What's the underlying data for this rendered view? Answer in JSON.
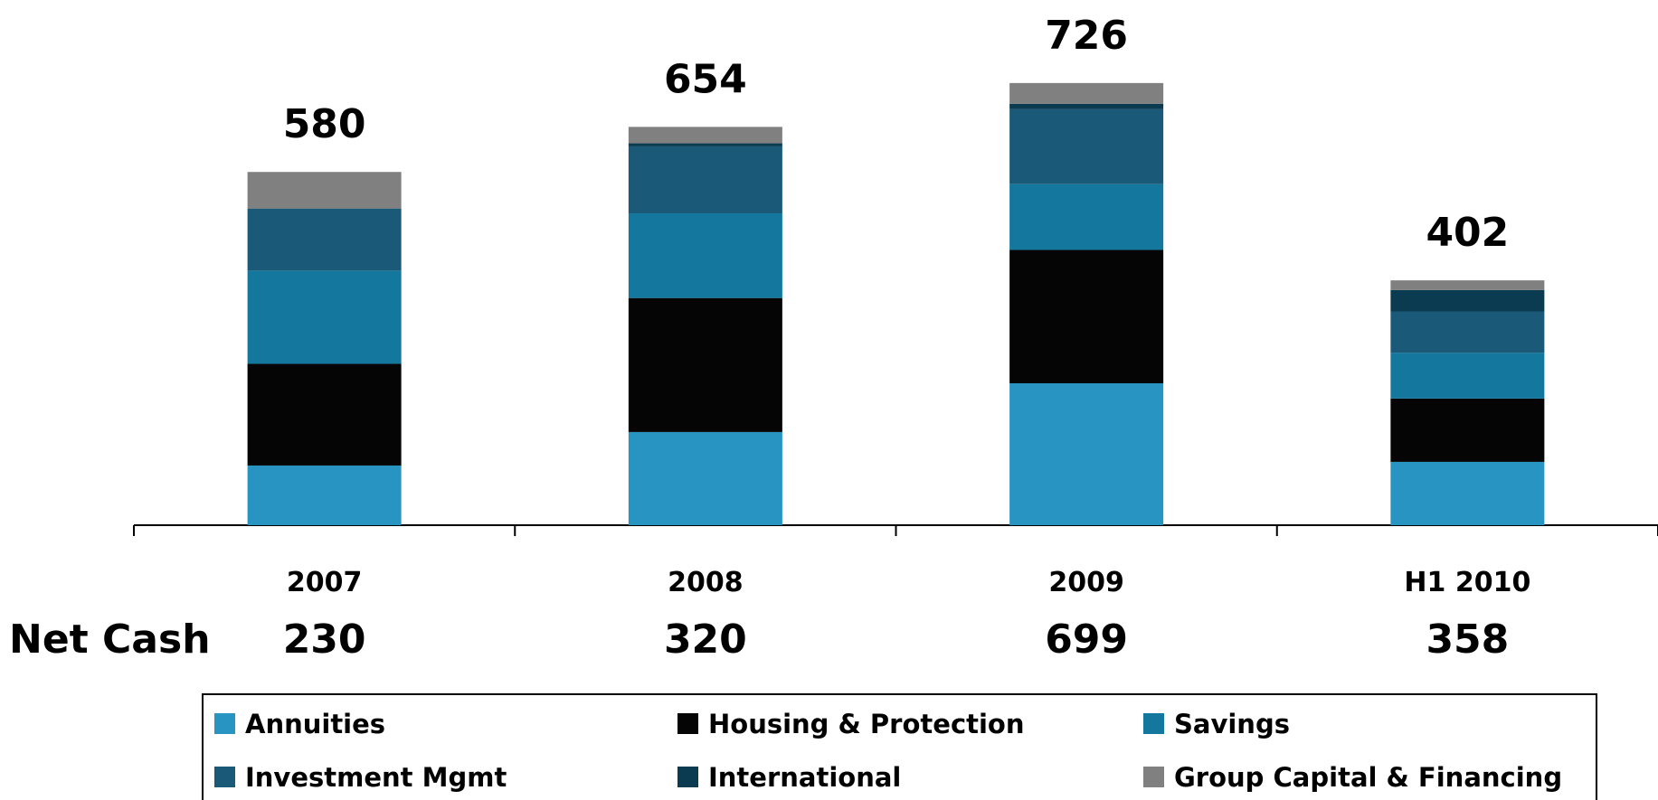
{
  "chart_data": {
    "type": "stacked_bar",
    "categories": [
      "2007",
      "2008",
      "2009",
      "H1 2010"
    ],
    "series": [
      {
        "name": "Annuities",
        "color": "#2894c2",
        "values": [
          98,
          153,
          233,
          104
        ]
      },
      {
        "name": "Housing & Protection",
        "color": "#050505",
        "values": [
          167,
          220,
          219,
          104
        ]
      },
      {
        "name": "Savings",
        "color": "#13779e",
        "values": [
          153,
          139,
          108,
          75
        ]
      },
      {
        "name": "Investment Mgmt",
        "color": "#1a5a78",
        "values": [
          102,
          110,
          123,
          68
        ]
      },
      {
        "name": "International",
        "color": "#0b3b50",
        "values": [
          0,
          5,
          9,
          35
        ]
      },
      {
        "name": "Group Capital & Financing",
        "color": "#808080",
        "values": [
          60,
          27,
          34,
          16
        ]
      }
    ],
    "totals": [
      580,
      654,
      726,
      402
    ],
    "net_cash": {
      "label": "Net Cash",
      "values": [
        230,
        320,
        699,
        358
      ]
    },
    "ylim": [
      0,
      800
    ]
  }
}
